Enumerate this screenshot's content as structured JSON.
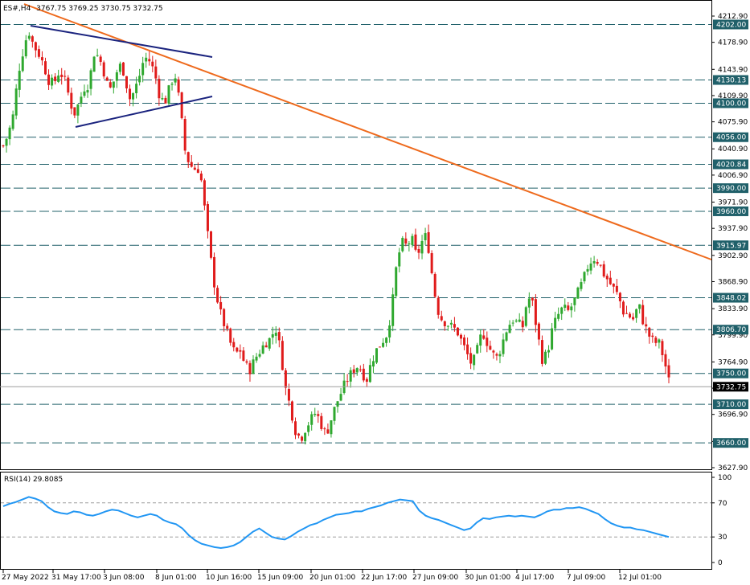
{
  "header": {
    "symbol": "ES#,H4",
    "ohlc": "3767.75 3769.25 3730.75 3732.75"
  },
  "rsi_header": "RSI(14) 29.8085",
  "colors": {
    "up": "#2fa82f",
    "down": "#e01b1b",
    "trendline_orange": "#ee6a1d",
    "triangle_navy": "#1a237e",
    "hline_teal": "#20606a",
    "rsi_line": "#2196f3",
    "current_price_line": "#9e9e9e",
    "label_dark": "#000000"
  },
  "chart_data": [
    {
      "type": "candlestick",
      "title": "",
      "instrument": "ES#",
      "timeframe": "H4",
      "ylim": [
        3627.9,
        4212.9
      ],
      "y_ticks": [
        "4212.90",
        "4178.90",
        "4143.90",
        "4109.90",
        "4075.90",
        "4040.90",
        "4006.90",
        "3971.90",
        "3937.90",
        "3902.90",
        "3868.90",
        "3833.90",
        "3799.90",
        "3764.90",
        "3730.90",
        "3696.90",
        "3661.90",
        "3627.90"
      ],
      "x_ticks": [
        "27 May 2022",
        "31 May 17:00",
        "3 Jun 08:00",
        "8 Jun 01:00",
        "10 Jun 16:00",
        "15 Jun 09:00",
        "20 Jun 01:00",
        "22 Jun 17:00",
        "27 Jun 09:00",
        "30 Jun 01:00",
        "4 Jul 17:00",
        "7 Jul 09:00",
        "12 Jul 01:00"
      ],
      "horizontal_levels": [
        "4202.00",
        "4130.13",
        "4100.00",
        "4056.00",
        "4020.84",
        "3990.00",
        "3960.00",
        "3915.97",
        "3848.02",
        "3806.70",
        "3750.00",
        "3710.00",
        "3660.00"
      ],
      "current_price": "3732.75",
      "close_path": [
        [
          0,
          4045
        ],
        [
          4,
          4060
        ],
        [
          8,
          4085
        ],
        [
          12,
          4140
        ],
        [
          16,
          4170
        ],
        [
          20,
          4195
        ],
        [
          24,
          4175
        ],
        [
          28,
          4165
        ],
        [
          32,
          4150
        ],
        [
          36,
          4130
        ],
        [
          40,
          4125
        ],
        [
          44,
          4140
        ],
        [
          48,
          4135
        ],
        [
          52,
          4110
        ],
        [
          56,
          4085
        ],
        [
          60,
          4100
        ],
        [
          64,
          4120
        ],
        [
          68,
          4125
        ],
        [
          72,
          4165
        ],
        [
          76,
          4160
        ],
        [
          80,
          4140
        ],
        [
          84,
          4115
        ],
        [
          88,
          4130
        ],
        [
          92,
          4150
        ],
        [
          96,
          4140
        ],
        [
          100,
          4105
        ],
        [
          104,
          4115
        ],
        [
          108,
          4135
        ],
        [
          112,
          4160
        ],
        [
          116,
          4155
        ],
        [
          120,
          4140
        ],
        [
          124,
          4110
        ],
        [
          128,
          4100
        ],
        [
          132,
          4120
        ],
        [
          136,
          4140
        ],
        [
          140,
          4100
        ],
        [
          144,
          4040
        ],
        [
          148,
          4020
        ],
        [
          152,
          4015
        ],
        [
          156,
          4015
        ],
        [
          160,
          3960
        ],
        [
          164,
          3905
        ],
        [
          168,
          3860
        ],
        [
          172,
          3830
        ],
        [
          176,
          3810
        ],
        [
          180,
          3790
        ],
        [
          184,
          3775
        ],
        [
          188,
          3780
        ],
        [
          192,
          3760
        ],
        [
          196,
          3755
        ],
        [
          200,
          3770
        ],
        [
          204,
          3780
        ],
        [
          208,
          3790
        ],
        [
          212,
          3795
        ],
        [
          216,
          3810
        ],
        [
          220,
          3780
        ],
        [
          224,
          3730
        ],
        [
          228,
          3705
        ],
        [
          232,
          3675
        ],
        [
          236,
          3665
        ],
        [
          240,
          3680
        ],
        [
          244,
          3690
        ],
        [
          248,
          3700
        ],
        [
          252,
          3685
        ],
        [
          256,
          3670
        ],
        [
          260,
          3690
        ],
        [
          264,
          3710
        ],
        [
          268,
          3725
        ],
        [
          272,
          3740
        ],
        [
          276,
          3750
        ],
        [
          280,
          3760
        ],
        [
          284,
          3755
        ],
        [
          288,
          3740
        ],
        [
          292,
          3765
        ],
        [
          296,
          3780
        ],
        [
          300,
          3790
        ],
        [
          304,
          3800
        ],
        [
          308,
          3830
        ],
        [
          312,
          3890
        ],
        [
          316,
          3920
        ],
        [
          320,
          3915
        ],
        [
          324,
          3925
        ],
        [
          328,
          3900
        ],
        [
          332,
          3920
        ],
        [
          336,
          3930
        ],
        [
          340,
          3880
        ],
        [
          344,
          3835
        ],
        [
          348,
          3820
        ],
        [
          352,
          3815
        ],
        [
          356,
          3810
        ],
        [
          360,
          3805
        ],
        [
          364,
          3790
        ],
        [
          368,
          3775
        ],
        [
          372,
          3760
        ],
        [
          376,
          3780
        ],
        [
          380,
          3805
        ],
        [
          384,
          3790
        ],
        [
          388,
          3775
        ],
        [
          392,
          3770
        ],
        [
          396,
          3790
        ],
        [
          400,
          3810
        ],
        [
          404,
          3820
        ],
        [
          408,
          3815
        ],
        [
          412,
          3810
        ],
        [
          416,
          3850
        ],
        [
          420,
          3840
        ],
        [
          424,
          3800
        ],
        [
          428,
          3765
        ],
        [
          432,
          3780
        ],
        [
          436,
          3810
        ],
        [
          440,
          3825
        ],
        [
          444,
          3835
        ],
        [
          448,
          3830
        ],
        [
          452,
          3840
        ],
        [
          456,
          3855
        ],
        [
          460,
          3870
        ],
        [
          464,
          3890
        ],
        [
          468,
          3900
        ],
        [
          472,
          3895
        ],
        [
          476,
          3880
        ],
        [
          480,
          3870
        ],
        [
          484,
          3860
        ],
        [
          488,
          3850
        ],
        [
          492,
          3830
        ],
        [
          496,
          3825
        ],
        [
          500,
          3820
        ],
        [
          504,
          3840
        ],
        [
          508,
          3815
        ],
        [
          512,
          3800
        ],
        [
          516,
          3790
        ],
        [
          520,
          3790
        ],
        [
          524,
          3770
        ],
        [
          528,
          3740
        ]
      ]
    },
    {
      "type": "line",
      "title": "RSI(14)",
      "ylim": [
        0,
        100
      ],
      "y_ticks": [
        "100",
        "70",
        "30",
        "0"
      ],
      "levels": [
        70,
        30
      ],
      "last_value": 29.8085,
      "values": [
        66,
        69,
        71,
        74,
        77,
        75,
        72,
        65,
        60,
        58,
        57,
        60,
        59,
        56,
        55,
        57,
        60,
        62,
        61,
        58,
        55,
        53,
        55,
        57,
        55,
        50,
        47,
        45,
        40,
        32,
        26,
        22,
        20,
        18,
        17,
        18,
        20,
        24,
        30,
        36,
        40,
        35,
        30,
        28,
        27,
        31,
        36,
        40,
        44,
        46,
        50,
        53,
        56,
        57,
        58,
        60,
        60,
        63,
        65,
        67,
        70,
        72,
        74,
        73,
        72,
        61,
        55,
        52,
        50,
        47,
        44,
        41,
        38,
        40,
        47,
        52,
        51,
        53,
        54,
        55,
        54,
        55,
        54,
        53,
        56,
        60,
        62,
        62,
        64,
        64,
        65,
        63,
        60,
        57,
        51,
        46,
        43,
        41,
        41,
        39,
        38,
        36,
        34,
        32,
        30
      ]
    }
  ]
}
